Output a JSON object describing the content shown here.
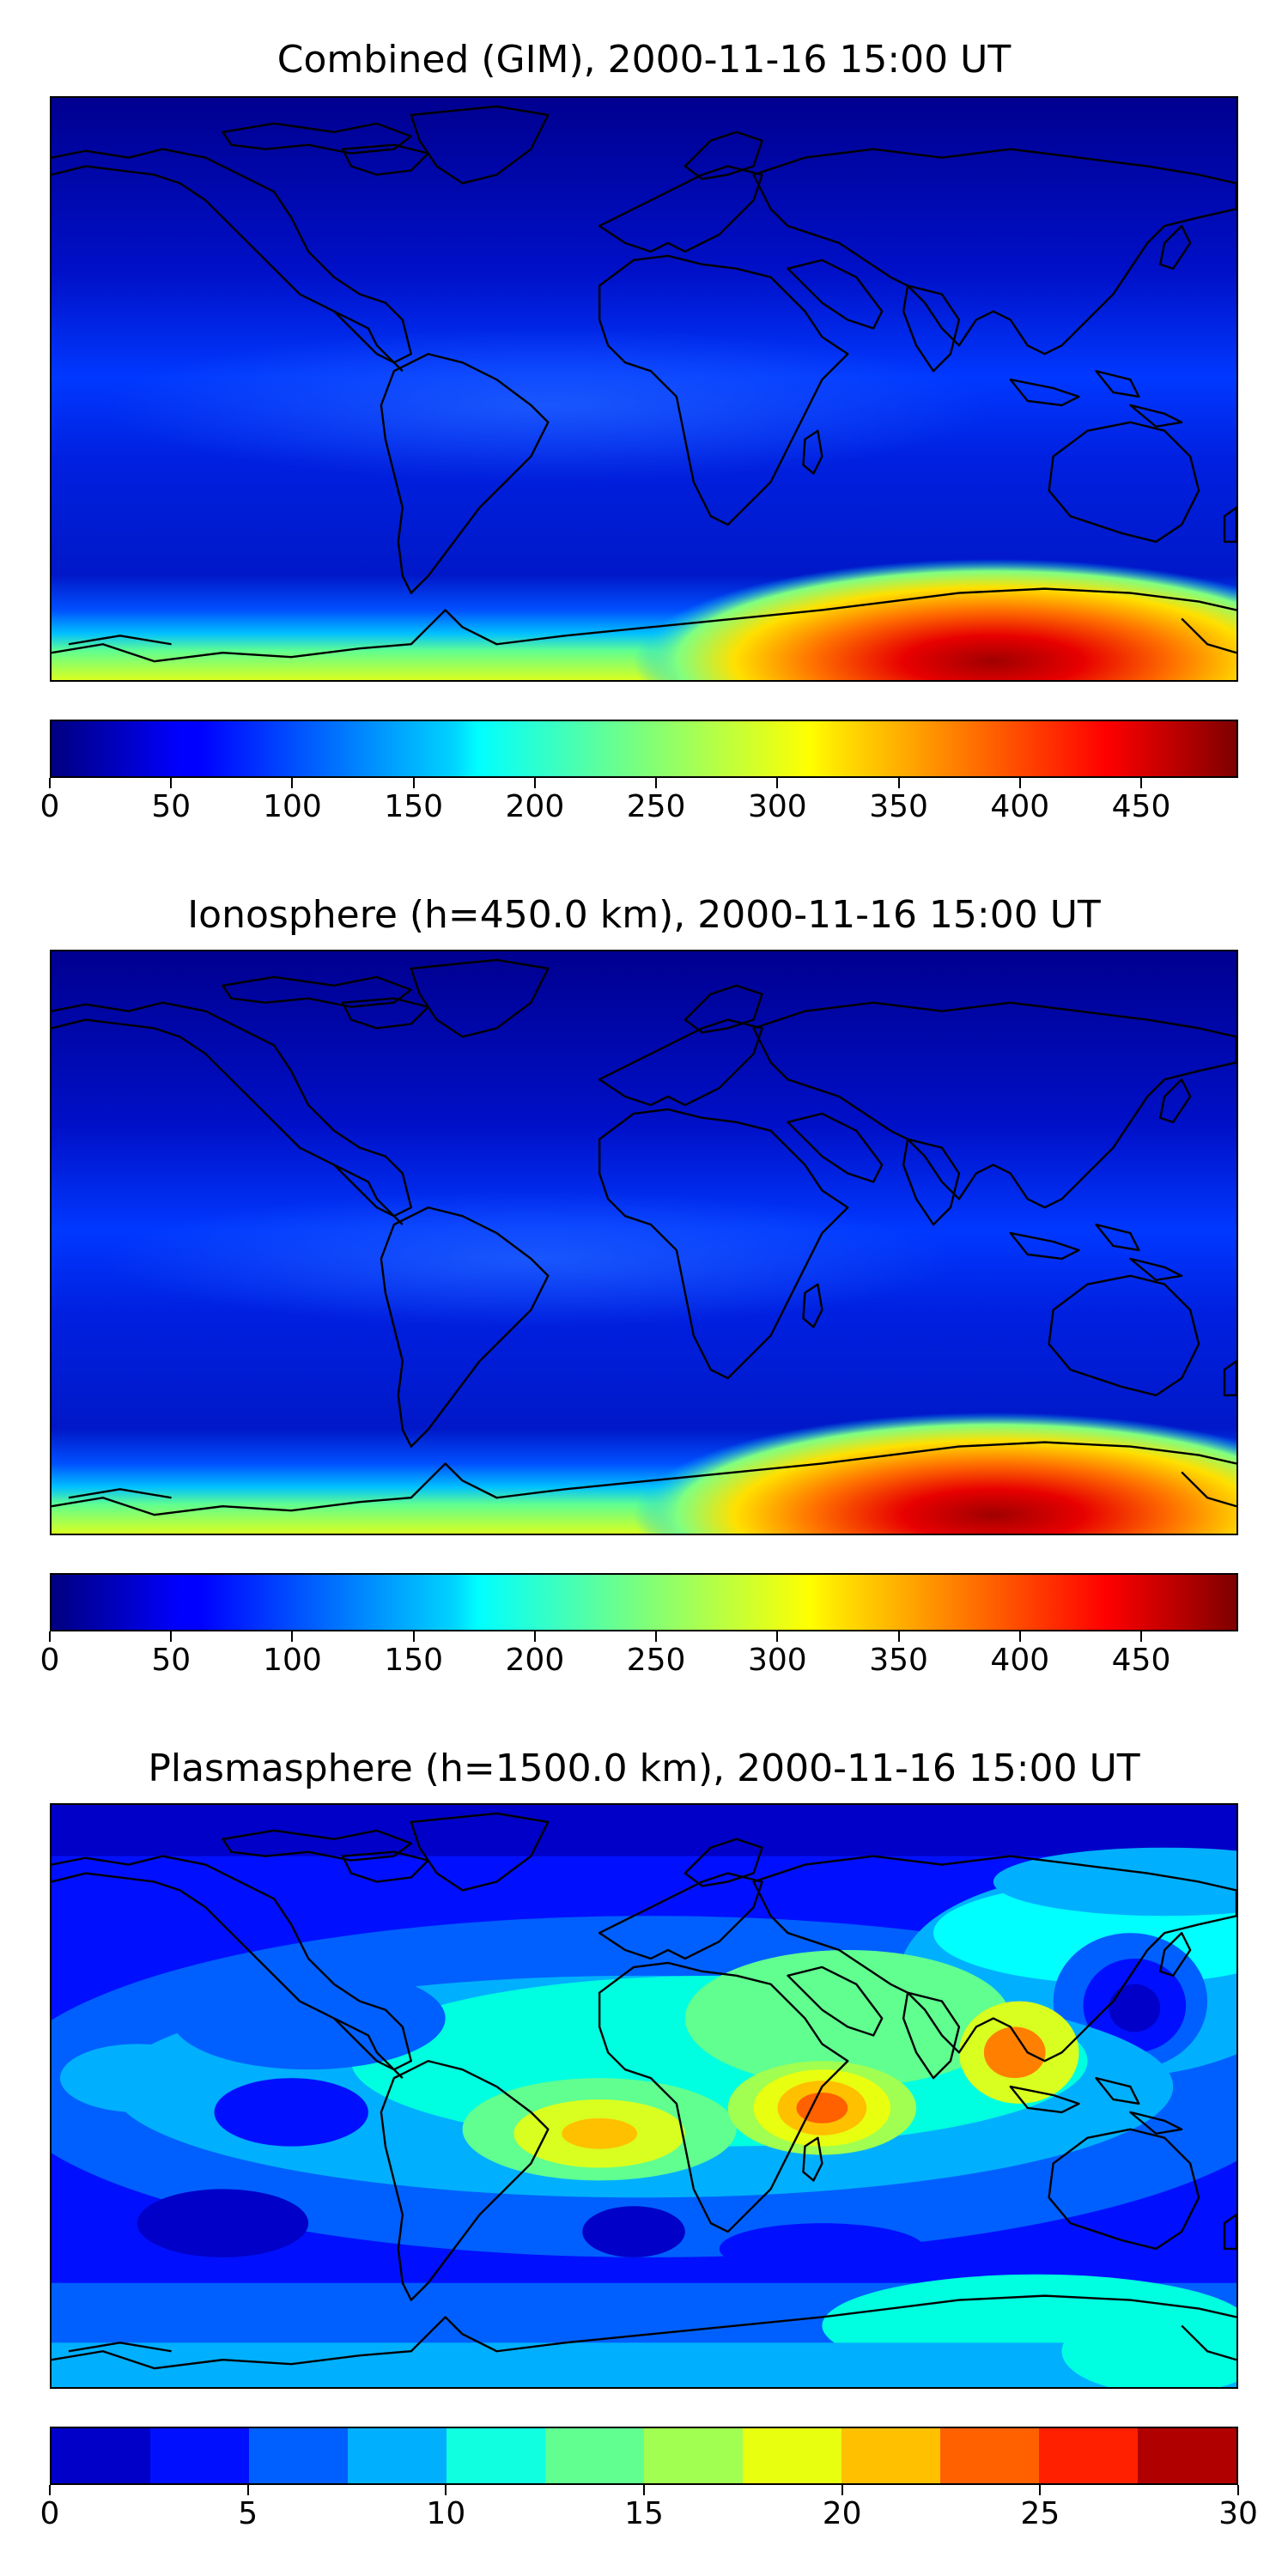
{
  "panels": [
    {
      "title": "Combined (GIM), 2000-11-16 15:00 UT",
      "colorbar": {
        "colormap": "jet",
        "range": [
          0,
          490
        ],
        "ticks": [
          "0",
          "50",
          "100",
          "150",
          "200",
          "250",
          "300",
          "350",
          "400",
          "450"
        ],
        "discrete_levels": 0
      },
      "features": [
        "south-polar-maximum-near-longitude-130E"
      ]
    },
    {
      "title": "Ionosphere  (h=450.0 km), 2000-11-16 15:00 UT",
      "colorbar": {
        "colormap": "jet",
        "range": [
          0,
          490
        ],
        "ticks": [
          "0",
          "50",
          "100",
          "150",
          "200",
          "250",
          "300",
          "350",
          "400",
          "450"
        ],
        "discrete_levels": 0
      },
      "features": [
        "south-polar-maximum-near-longitude-130E"
      ]
    },
    {
      "title": "Plasmasphere (h=1500.0 km), 2000-11-16 15:00 UT",
      "colorbar": {
        "colormap": "jet",
        "range": [
          0,
          30
        ],
        "ticks": [
          "0",
          "5",
          "10",
          "15",
          "20",
          "25",
          "30"
        ],
        "discrete_levels": 12
      },
      "features": [
        "equatorial-maxima-africa",
        "equatorial-maxima-south-atlantic",
        "maximum-southeast-asia"
      ]
    }
  ],
  "colors": {
    "jet_low": "#00007f",
    "jet_high": "#7f0000"
  }
}
